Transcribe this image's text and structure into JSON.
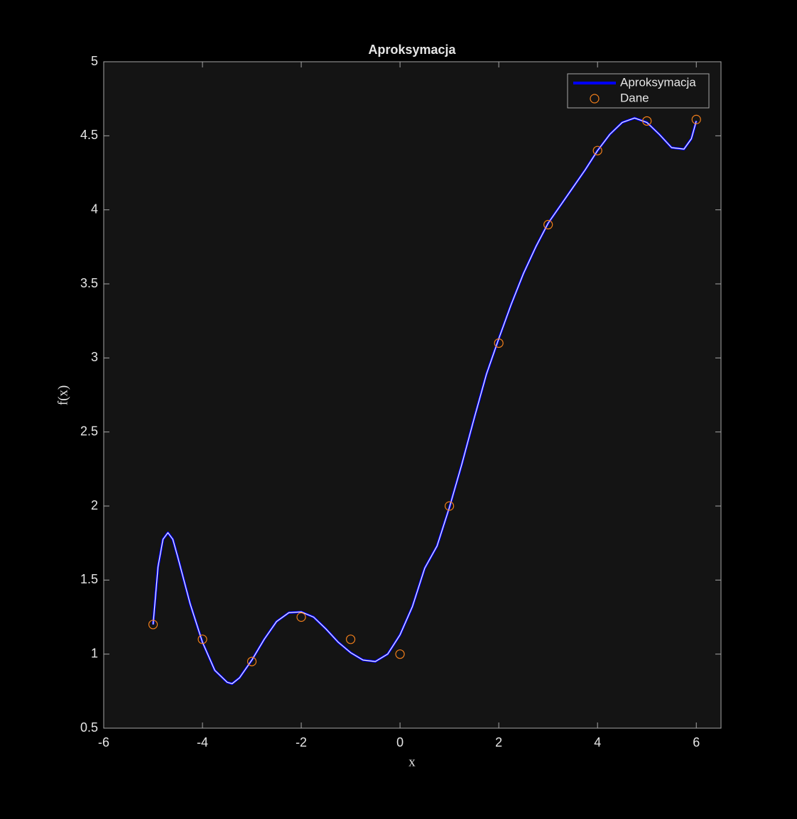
{
  "chart_data": {
    "type": "line",
    "title": "Aproksymacja",
    "x_label": "x",
    "y_label": "f(x)",
    "xlim": [
      -6,
      6.5
    ],
    "ylim": [
      0.5,
      5
    ],
    "xticks": [
      -6,
      -4,
      -2,
      0,
      2,
      4,
      6
    ],
    "yticks": [
      0.5,
      1,
      1.5,
      2,
      2.5,
      3,
      3.5,
      4,
      4.5,
      5
    ],
    "legend": "upper right",
    "series": [
      {
        "name": "Aproksymacja",
        "type": "line",
        "color": "#0000ff",
        "x": [
          -5,
          -4.9,
          -4.8,
          -4.7,
          -4.6,
          -4.5,
          -4.25,
          -4,
          -3.75,
          -3.5,
          -3.4,
          -3.25,
          -3,
          -2.75,
          -2.5,
          -2.25,
          -2,
          -1.75,
          -1.5,
          -1.25,
          -1,
          -0.75,
          -0.5,
          -0.25,
          0,
          0.25,
          0.5,
          0.75,
          1,
          1.25,
          1.5,
          1.75,
          2,
          2.25,
          2.5,
          2.75,
          3,
          3.25,
          3.5,
          3.75,
          4,
          4.25,
          4.5,
          4.75,
          5,
          5.25,
          5.5,
          5.75,
          5.9,
          6
        ],
        "values": [
          1.2,
          1.59,
          1.775,
          1.82,
          1.775,
          1.655,
          1.34,
          1.08,
          0.89,
          0.81,
          0.8,
          0.84,
          0.96,
          1.1,
          1.22,
          1.28,
          1.285,
          1.25,
          1.17,
          1.08,
          1.01,
          0.96,
          0.95,
          1.0,
          1.13,
          1.32,
          1.58,
          1.73,
          1.99,
          2.28,
          2.59,
          2.89,
          3.13,
          3.36,
          3.57,
          3.75,
          3.91,
          4.03,
          4.15,
          4.27,
          4.4,
          4.51,
          4.59,
          4.62,
          4.59,
          4.51,
          4.42,
          4.41,
          4.48,
          4.6
        ]
      },
      {
        "name": "Dane",
        "type": "scatter",
        "color": "#f27f1b",
        "x": [
          -5,
          -4,
          -3,
          -2,
          -1,
          0,
          1,
          2,
          3,
          4,
          5,
          6
        ],
        "values": [
          1.2,
          1.1,
          0.95,
          1.25,
          1.1,
          1.0,
          2.0,
          3.1,
          3.9,
          4.4,
          4.6,
          4.61
        ]
      }
    ]
  }
}
